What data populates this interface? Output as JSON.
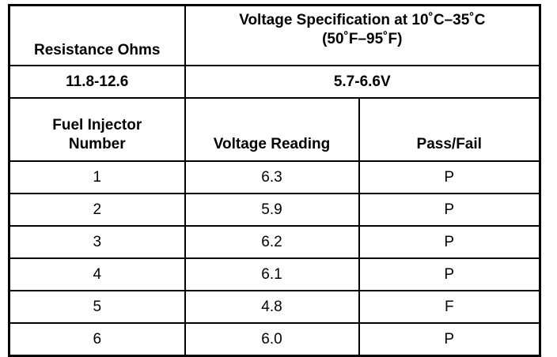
{
  "header": {
    "resistance_label": "Resistance Ohms",
    "voltage_spec_line1": "Voltage Specification at 10˚C–35˚C",
    "voltage_spec_line2": "(50˚F–95˚F)",
    "resistance_value": "11.8-12.6",
    "voltage_spec_value": "5.7-6.6V",
    "col_injector_line1": "Fuel Injector",
    "col_injector_line2": "Number",
    "col_voltage": "Voltage Reading",
    "col_passfail": "Pass/Fail"
  },
  "rows": [
    {
      "number": "1",
      "voltage": "6.3",
      "result": "P"
    },
    {
      "number": "2",
      "voltage": "5.9",
      "result": "P"
    },
    {
      "number": "3",
      "voltage": "6.2",
      "result": "P"
    },
    {
      "number": "4",
      "voltage": "6.1",
      "result": "P"
    },
    {
      "number": "5",
      "voltage": "4.8",
      "result": "F"
    },
    {
      "number": "6",
      "voltage": "6.0",
      "result": "P"
    }
  ]
}
